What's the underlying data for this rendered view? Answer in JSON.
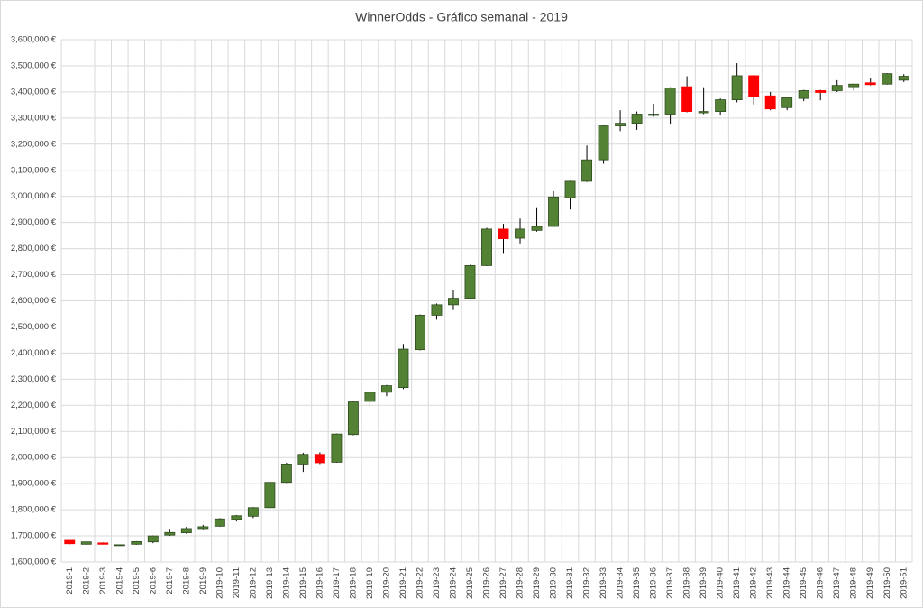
{
  "chart_data": {
    "type": "candlestick",
    "title": "WinnerOdds - Gráfico semanal - 2019",
    "categories": [
      "2019-1",
      "2019-2",
      "2019-3",
      "2019-4",
      "2019-5",
      "2019-6",
      "2019-7",
      "2019-8",
      "2019-9",
      "2019-10",
      "2019-11",
      "2019-12",
      "2019-13",
      "2019-14",
      "2019-15",
      "2019-16",
      "2019-17",
      "2019-18",
      "2019-19",
      "2019-20",
      "2019-21",
      "2019-22",
      "2019-23",
      "2019-24",
      "2019-25",
      "2019-26",
      "2019-27",
      "2019-28",
      "2019-29",
      "2019-30",
      "2019-31",
      "2019-32",
      "2019-33",
      "2019-34",
      "2019-35",
      "2019-36",
      "2019-37",
      "2019-38",
      "2019-39",
      "2019-40",
      "2019-41",
      "2019-42",
      "2019-43",
      "2019-44",
      "2019-45",
      "2019-46",
      "2019-47",
      "2019-48",
      "2019-49",
      "2019-50",
      "2019-51"
    ],
    "open": [
      1683000,
      1668000,
      1673000,
      1664000,
      1668000,
      1677000,
      1703000,
      1712000,
      1728000,
      1737000,
      1763000,
      1775000,
      1808000,
      1905000,
      1975000,
      2012000,
      1982000,
      2088000,
      2215000,
      2250000,
      2268000,
      2413000,
      2545000,
      2585000,
      2610000,
      2735000,
      2875000,
      2840000,
      2870000,
      2885000,
      2995000,
      3058000,
      3140000,
      3270000,
      3280000,
      3310000,
      3315000,
      3420000,
      3320000,
      3325000,
      3370000,
      3462000,
      3385000,
      3340000,
      3375000,
      3405000,
      3405000,
      3420000,
      3435000,
      3430000,
      3445000
    ],
    "high": [
      1684000,
      1678000,
      1675000,
      1667000,
      1680000,
      1702000,
      1727000,
      1735000,
      1742000,
      1768000,
      1780000,
      1810000,
      1908000,
      1980000,
      2018000,
      2020000,
      2092000,
      2215000,
      2252000,
      2278000,
      2435000,
      2548000,
      2590000,
      2640000,
      2738000,
      2880000,
      2895000,
      2915000,
      2955000,
      3020000,
      3060000,
      3195000,
      3272000,
      3330000,
      3325000,
      3355000,
      3418000,
      3460000,
      3418000,
      3375000,
      3510000,
      3465000,
      3400000,
      3380000,
      3408000,
      3408000,
      3445000,
      3432000,
      3455000,
      3472000,
      3468000
    ],
    "low": [
      1668000,
      1667000,
      1667000,
      1664000,
      1666000,
      1672000,
      1700000,
      1708000,
      1725000,
      1735000,
      1755000,
      1768000,
      1806000,
      1903000,
      1945000,
      1975000,
      1980000,
      2085000,
      2195000,
      2235000,
      2262000,
      2410000,
      2528000,
      2565000,
      2605000,
      2733000,
      2780000,
      2820000,
      2865000,
      2883000,
      2950000,
      3055000,
      3125000,
      3250000,
      3255000,
      3305000,
      3275000,
      3322000,
      3315000,
      3310000,
      3360000,
      3352000,
      3330000,
      3330000,
      3365000,
      3368000,
      3400000,
      3405000,
      3425000,
      3428000,
      3438000
    ],
    "close": [
      1670000,
      1677000,
      1668000,
      1666000,
      1678000,
      1700000,
      1713000,
      1728000,
      1735000,
      1765000,
      1777000,
      1808000,
      1905000,
      1975000,
      2012000,
      1980000,
      2090000,
      2213000,
      2250000,
      2275000,
      2415000,
      2545000,
      2585000,
      2610000,
      2735000,
      2875000,
      2838000,
      2875000,
      2885000,
      2998000,
      3058000,
      3140000,
      3270000,
      3280000,
      3315000,
      3315000,
      3415000,
      3325000,
      3325000,
      3370000,
      3462000,
      3382000,
      3335000,
      3378000,
      3405000,
      3398000,
      3425000,
      3430000,
      3428000,
      3470000,
      3460000
    ],
    "up_color": "#548235",
    "down_color": "#ff0000",
    "ylim": [
      1600000,
      3600000
    ],
    "yticks": [
      {
        "value": 1600000,
        "label": "1,600,000 €"
      },
      {
        "value": 1700000,
        "label": "1,700,000 €"
      },
      {
        "value": 1800000,
        "label": "1,800,000 €"
      },
      {
        "value": 1900000,
        "label": "1,900,000 €"
      },
      {
        "value": 2000000,
        "label": "2,000,000 €"
      },
      {
        "value": 2100000,
        "label": "2,100,000 €"
      },
      {
        "value": 2200000,
        "label": "2,200,000 €"
      },
      {
        "value": 2300000,
        "label": "2,300,000 €"
      },
      {
        "value": 2400000,
        "label": "2,400,000 €"
      },
      {
        "value": 2500000,
        "label": "2,500,000 €"
      },
      {
        "value": 2600000,
        "label": "2,600,000 €"
      },
      {
        "value": 2700000,
        "label": "2,700,000 €"
      },
      {
        "value": 2800000,
        "label": "2,800,000 €"
      },
      {
        "value": 2900000,
        "label": "2,900,000 €"
      },
      {
        "value": 3000000,
        "label": "3,000,000 €"
      },
      {
        "value": 3100000,
        "label": "3,100,000 €"
      },
      {
        "value": 3200000,
        "label": "3,200,000 €"
      },
      {
        "value": 3300000,
        "label": "3,300,000 €"
      },
      {
        "value": 3400000,
        "label": "3,400,000 €"
      },
      {
        "value": 3500000,
        "label": "3,500,000 €"
      },
      {
        "value": 3600000,
        "label": "3,600,000 €"
      }
    ],
    "grid": true
  }
}
